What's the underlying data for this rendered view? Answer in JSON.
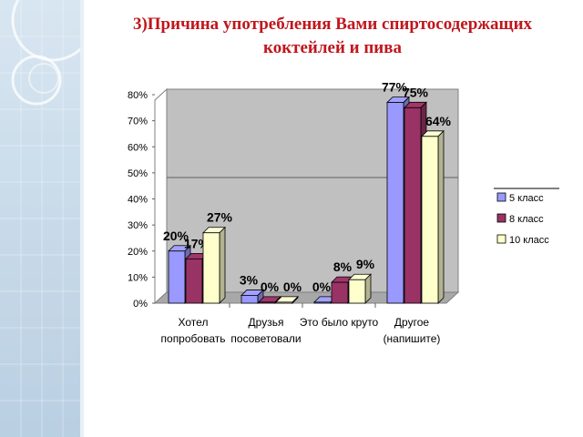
{
  "slide": {
    "title_line1": "3)Причина употребления Вами спиртосодержащих",
    "title_line2": "коктейлей и пива",
    "accent_color": "#c0161d",
    "background_panel_color": "#c9dceb"
  },
  "chart_data": {
    "type": "bar",
    "title": "",
    "xlabel": "",
    "ylabel": "",
    "ylim": [
      0,
      80
    ],
    "y_ticks": [
      "0%",
      "10%",
      "20%",
      "30%",
      "40%",
      "50%",
      "60%",
      "70%",
      "80%"
    ],
    "categories": [
      [
        "Хотел",
        "попробовать"
      ],
      [
        "Друзья",
        "посоветовали"
      ],
      [
        "Это было круто",
        ""
      ],
      [
        "Другое",
        "(напишите)"
      ]
    ],
    "series": [
      {
        "name": "5 класс",
        "values": [
          20,
          3,
          0,
          77
        ],
        "labels": [
          "20%",
          "3%",
          "0%",
          "77%"
        ],
        "color": "#9999ff"
      },
      {
        "name": "8 класс",
        "values": [
          17,
          0,
          8,
          75
        ],
        "labels": [
          "17%",
          "0%",
          "8%",
          "75%"
        ],
        "color": "#993366"
      },
      {
        "name": "10 класс",
        "values": [
          27,
          0,
          9,
          64
        ],
        "labels": [
          "27%",
          "0%",
          "9%",
          "64%"
        ],
        "color": "#ffffcc"
      }
    ],
    "wall_color": "#c0c0c0",
    "legend_position": "right",
    "grid": false,
    "three_d": true
  }
}
